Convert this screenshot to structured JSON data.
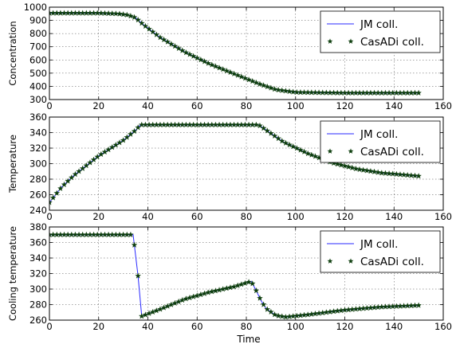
{
  "figure": {
    "xlabel": "Time",
    "legend_position": "top-right",
    "colors": {
      "jm_line": "#2a2aff",
      "casadi_marker": "#0c3d0c"
    }
  },
  "chart_data": [
    {
      "type": "line",
      "title": "",
      "xlabel": "",
      "ylabel": "Concentration",
      "xlim": [
        0,
        160
      ],
      "ylim": [
        300,
        1000
      ],
      "xticks": [
        0,
        20,
        40,
        60,
        80,
        100,
        120,
        140,
        160
      ],
      "yticks": [
        300,
        400,
        500,
        600,
        700,
        800,
        900,
        1000
      ],
      "grid": true,
      "legend": "top-right",
      "series": [
        {
          "name": "JM coll.",
          "style": "line",
          "x": [
            0,
            20,
            28,
            32,
            35,
            38,
            45,
            55,
            65,
            75,
            85,
            92,
            100,
            120,
            150
          ],
          "y": [
            955,
            955,
            950,
            940,
            920,
            870,
            770,
            660,
            570,
            495,
            420,
            375,
            355,
            350,
            350
          ]
        },
        {
          "name": "CasADi coll.",
          "style": "markers",
          "x": [
            0,
            20,
            28,
            32,
            35,
            38,
            45,
            55,
            65,
            75,
            85,
            92,
            100,
            120,
            150
          ],
          "y": [
            955,
            955,
            950,
            940,
            920,
            870,
            770,
            660,
            570,
            495,
            420,
            375,
            355,
            350,
            350
          ]
        }
      ]
    },
    {
      "type": "line",
      "title": "",
      "xlabel": "",
      "ylabel": "Temperature",
      "xlim": [
        0,
        160
      ],
      "ylim": [
        240,
        360
      ],
      "xticks": [
        0,
        20,
        40,
        60,
        80,
        100,
        120,
        140,
        160
      ],
      "yticks": [
        240,
        260,
        280,
        300,
        320,
        340,
        360
      ],
      "grid": true,
      "legend": "top-right",
      "series": [
        {
          "name": "JM coll.",
          "style": "line",
          "x": [
            0,
            5,
            10,
            20,
            30,
            35,
            37,
            50,
            70,
            85,
            95,
            105,
            115,
            125,
            135,
            150
          ],
          "y": [
            250,
            270,
            285,
            310,
            330,
            343,
            350,
            350,
            350,
            350,
            328,
            313,
            301,
            293,
            288,
            284
          ]
        },
        {
          "name": "CasADi coll.",
          "style": "markers",
          "x": [
            0,
            5,
            10,
            20,
            30,
            35,
            37,
            50,
            70,
            85,
            95,
            105,
            115,
            125,
            135,
            150
          ],
          "y": [
            250,
            270,
            285,
            310,
            330,
            343,
            350,
            350,
            350,
            350,
            328,
            313,
            301,
            293,
            288,
            284
          ]
        }
      ]
    },
    {
      "type": "line",
      "title": "",
      "xlabel": "Time",
      "ylabel": "Cooling temperature",
      "xlim": [
        0,
        160
      ],
      "ylim": [
        260,
        380
      ],
      "xticks": [
        0,
        20,
        40,
        60,
        80,
        100,
        120,
        140,
        160
      ],
      "yticks": [
        260,
        280,
        300,
        320,
        340,
        360,
        380
      ],
      "grid": true,
      "legend": "top-right",
      "series": [
        {
          "name": "JM coll.",
          "style": "line",
          "x": [
            0,
            34,
            36,
            37.5,
            45,
            55,
            65,
            75,
            82,
            84,
            86,
            88,
            92,
            96,
            105,
            120,
            135,
            150
          ],
          "y": [
            370,
            370,
            317,
            265,
            274,
            287,
            296,
            303,
            310,
            298,
            285,
            275,
            266,
            264,
            267,
            273,
            277,
            279
          ]
        },
        {
          "name": "CasADi coll.",
          "style": "markers",
          "x": [
            0,
            34,
            36,
            37.5,
            45,
            55,
            65,
            75,
            82,
            84,
            86,
            88,
            92,
            96,
            105,
            120,
            135,
            150
          ],
          "y": [
            370,
            370,
            317,
            265,
            274,
            287,
            296,
            303,
            310,
            298,
            285,
            275,
            266,
            264,
            267,
            273,
            277,
            279
          ]
        }
      ]
    }
  ]
}
